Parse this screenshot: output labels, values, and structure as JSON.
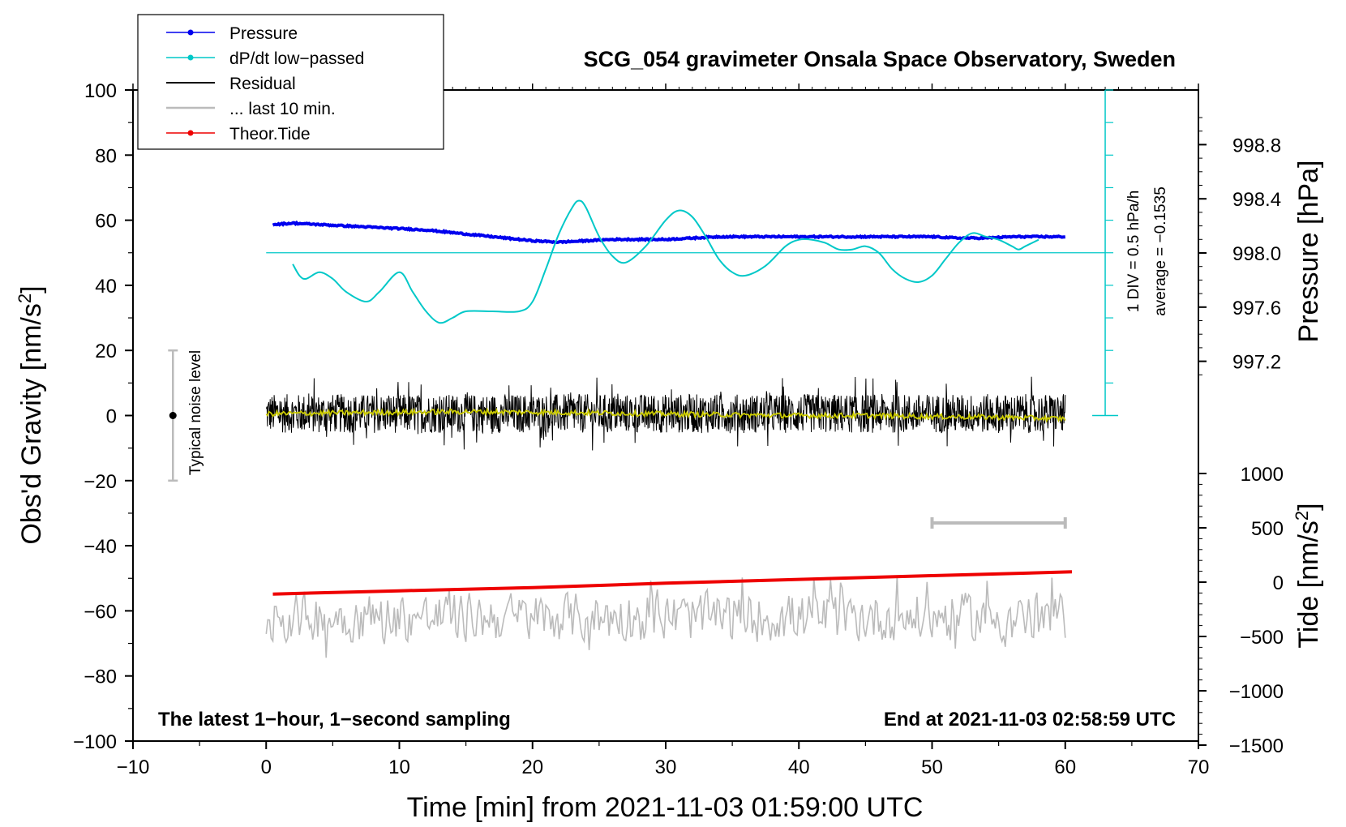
{
  "chart_data": {
    "type": "line",
    "title": "SCG_054 gravimeter Onsala Space Observatory, Sweden",
    "xlabel": "Time [min] from 2021-11-03 01:59:00 UTC",
    "ylabel_left": "Obs'd Gravity [nm/s",
    "ylabel_left_sup": "2",
    "ylabel_left_end": "]",
    "ylabel_pressure": "Pressure [hPa]",
    "ylabel_tide": "Tide [nm/s",
    "ylabel_tide_sup": "2",
    "ylabel_tide_end": "]",
    "xlim": [
      -10,
      70
    ],
    "ylim": [
      -100,
      100
    ],
    "x_ticks": [
      "−10",
      "0",
      "10",
      "20",
      "30",
      "40",
      "50",
      "60",
      "70"
    ],
    "y_ticks": [
      "100",
      "80",
      "60",
      "40",
      "20",
      "0",
      "−20",
      "−40",
      "−60",
      "−80",
      "−100"
    ],
    "pressure_ticks": [
      "998.8",
      "998.4",
      "998.0",
      "997.6",
      "997.2"
    ],
    "pressure_tick_values": [
      998.8,
      998.4,
      998.0,
      997.6,
      997.2
    ],
    "tide_ticks": [
      "1000",
      "500",
      "0",
      "−500",
      "−1000",
      "−1500"
    ],
    "tide_tick_values": [
      1000,
      500,
      0,
      -500,
      -1000,
      -1500
    ],
    "legend": [
      {
        "label": "Pressure",
        "color": "#0000ee",
        "marker": true
      },
      {
        "label": "dP/dt low−passed",
        "color": "#00c8c8",
        "marker": true
      },
      {
        "label": "Residual",
        "color": "#000000",
        "marker": false
      },
      {
        "label": "... last 10 min.",
        "color": "#bbbbbb",
        "marker": false
      },
      {
        "label": "Theor.Tide",
        "color": "#ee0000",
        "marker": true
      }
    ],
    "annotations": {
      "noise_level": "Typical noise level",
      "div_label": "1 DIV = 0.5 hPa/h",
      "average_label": "average = −0.1535",
      "bottom_left": "The latest 1−hour, 1−second sampling",
      "bottom_right": "End at 2021-11-03 02:58:59 UTC"
    },
    "series": [
      {
        "name": "Pressure",
        "units": "hPa",
        "color": "#0000ee",
        "points": [
          [
            0.5,
            998.21
          ],
          [
            2,
            998.22
          ],
          [
            4,
            998.21
          ],
          [
            6,
            998.2
          ],
          [
            8,
            998.19
          ],
          [
            10,
            998.18
          ],
          [
            12,
            998.17
          ],
          [
            14,
            998.15
          ],
          [
            16,
            998.13
          ],
          [
            18,
            998.11
          ],
          [
            20,
            998.09
          ],
          [
            22,
            998.08
          ],
          [
            24,
            998.09
          ],
          [
            26,
            998.1
          ],
          [
            28,
            998.1
          ],
          [
            30,
            998.1
          ],
          [
            32,
            998.11
          ],
          [
            34,
            998.12
          ],
          [
            36,
            998.12
          ],
          [
            38,
            998.12
          ],
          [
            40,
            998.12
          ],
          [
            42,
            998.12
          ],
          [
            44,
            998.12
          ],
          [
            46,
            998.12
          ],
          [
            48,
            998.12
          ],
          [
            50,
            998.12
          ],
          [
            52,
            998.11
          ],
          [
            54,
            998.11
          ],
          [
            56,
            998.12
          ],
          [
            58,
            998.12
          ],
          [
            60,
            998.12
          ]
        ]
      },
      {
        "name": "dP/dt low−passed",
        "units": "nm/s2 axis scale",
        "color": "#00c8c8",
        "points": [
          [
            2,
            46.5
          ],
          [
            2.5,
            43
          ],
          [
            3,
            42
          ],
          [
            4,
            44
          ],
          [
            5,
            42
          ],
          [
            6,
            38
          ],
          [
            7.5,
            35
          ],
          [
            8.5,
            38
          ],
          [
            10,
            44
          ],
          [
            11,
            38
          ],
          [
            12,
            32
          ],
          [
            13,
            28.5
          ],
          [
            14,
            30
          ],
          [
            15,
            32
          ],
          [
            17,
            32
          ],
          [
            19,
            32
          ],
          [
            20,
            35
          ],
          [
            21,
            45
          ],
          [
            22,
            56
          ],
          [
            23,
            64
          ],
          [
            23.5,
            66
          ],
          [
            24,
            64
          ],
          [
            25,
            55
          ],
          [
            26,
            49
          ],
          [
            27,
            47
          ],
          [
            28.5,
            52
          ],
          [
            30,
            60
          ],
          [
            31,
            63
          ],
          [
            32,
            61
          ],
          [
            33,
            55
          ],
          [
            34,
            48
          ],
          [
            35,
            44
          ],
          [
            36,
            43
          ],
          [
            37.5,
            46
          ],
          [
            39,
            52
          ],
          [
            40,
            54
          ],
          [
            41,
            54
          ],
          [
            42,
            53
          ],
          [
            43,
            51
          ],
          [
            44,
            51
          ],
          [
            45,
            52
          ],
          [
            46,
            50
          ],
          [
            47,
            45
          ],
          [
            48,
            42
          ],
          [
            49,
            41
          ],
          [
            50,
            43
          ],
          [
            51,
            48
          ],
          [
            52,
            53
          ],
          [
            53,
            56
          ],
          [
            54,
            55
          ],
          [
            55,
            54
          ],
          [
            56,
            52
          ],
          [
            56.5,
            51
          ],
          [
            57,
            52
          ],
          [
            58,
            54
          ]
        ]
      },
      {
        "name": "Residual smoothed",
        "units": "nm/s2",
        "color": "#cccc00",
        "points": [
          [
            0,
            0.5
          ],
          [
            5,
            0.8
          ],
          [
            10,
            1
          ],
          [
            15,
            1.2
          ],
          [
            20,
            1
          ],
          [
            25,
            0.8
          ],
          [
            30,
            0.5
          ],
          [
            35,
            0.2
          ],
          [
            40,
            0
          ],
          [
            45,
            0
          ],
          [
            50,
            -0.3
          ],
          [
            55,
            -0.5
          ],
          [
            60,
            -1
          ]
        ]
      },
      {
        "name": "Theor.Tide",
        "units": "nm/s2 tide axis",
        "color": "#ee0000",
        "points": [
          [
            0.5,
            -110
          ],
          [
            10,
            -80
          ],
          [
            20,
            -50
          ],
          [
            30,
            -10
          ],
          [
            40,
            25
          ],
          [
            50,
            60
          ],
          [
            60.5,
            95
          ]
        ]
      }
    ],
    "residual_band": {
      "x_range": [
        0,
        60
      ],
      "center": 0,
      "amplitude": 6
    },
    "last10_band": {
      "x_range": [
        0,
        60
      ],
      "center": -62,
      "amplitude": 5
    },
    "last10_range_bar": {
      "x_range": [
        50,
        60
      ],
      "y": -33
    },
    "noise_bar": {
      "x": -7,
      "y_range": [
        -20,
        20
      ]
    },
    "dpdt_reference": {
      "x_range": [
        0,
        63
      ],
      "y": 50,
      "scale_x": 63,
      "scale_y_range": [
        0,
        100
      ]
    }
  }
}
